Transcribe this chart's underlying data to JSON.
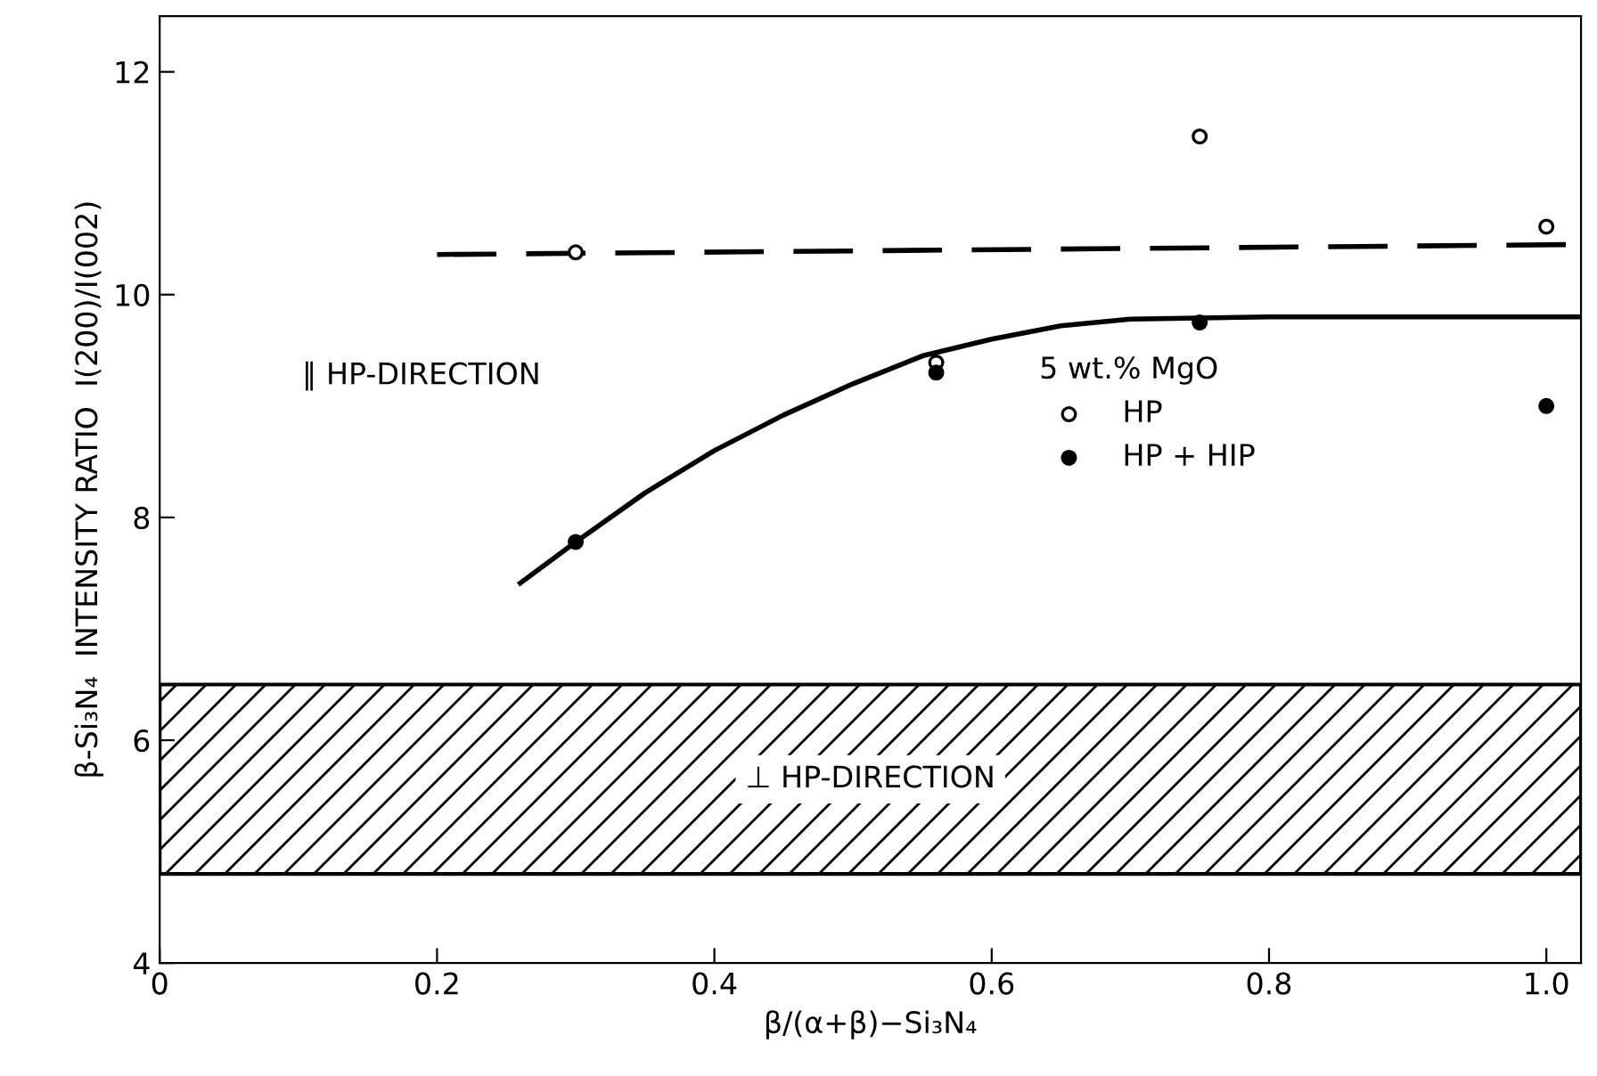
{
  "chart_data": {
    "type": "scatter",
    "xlabel": "β/(α+β)−Si₃N₄",
    "ylabel": "β-Si₃N₄  INTENSITY RATIO  I(200)/I(002)",
    "legend_title": "5 wt.% MgO",
    "xlim": [
      0,
      1.025
    ],
    "ylim": [
      4,
      12.5
    ],
    "xticks": [
      {
        "value": 0,
        "label": "0"
      },
      {
        "value": 0.2,
        "label": "0.2"
      },
      {
        "value": 0.4,
        "label": "0.4"
      },
      {
        "value": 0.6,
        "label": "0.6"
      },
      {
        "value": 0.8,
        "label": "0.8"
      },
      {
        "value": 1.0,
        "label": "1.0"
      }
    ],
    "yticks": [
      4,
      6,
      8,
      10,
      12
    ],
    "series": [
      {
        "name": "HP",
        "marker": "circle",
        "color": "#ffffff",
        "x": [
          0.3,
          0.56,
          0.75,
          1.0
        ],
        "values": [
          10.38,
          9.39,
          11.42,
          10.61
        ]
      },
      {
        "name": "HP + HIP",
        "marker": "circle",
        "color": "#000000",
        "x": [
          0.3,
          0.56,
          0.75,
          1.0
        ],
        "values": [
          7.78,
          9.3,
          9.75,
          9.0
        ]
      },
      {
        "type": "line",
        "line_style": "dashed",
        "color": "#000000",
        "x": [
          0.2,
          1.025
        ],
        "values": [
          10.36,
          10.45
        ]
      },
      {
        "type": "line",
        "line_style": "solid",
        "color": "#000000",
        "x": [
          0.26,
          0.3,
          0.35,
          0.4,
          0.45,
          0.5,
          0.55,
          0.6,
          0.65,
          0.7,
          0.8,
          0.9,
          1.025
        ],
        "values": [
          7.41,
          7.78,
          8.22,
          8.6,
          8.92,
          9.2,
          9.45,
          9.6,
          9.72,
          9.78,
          9.8,
          9.8,
          9.8
        ]
      }
    ],
    "bands": [
      {
        "axis": "y",
        "from": 4.8,
        "to": 6.5,
        "label": "⊥ HP-DIRECTION",
        "color": "#000000"
      }
    ],
    "annotations": [
      "∥ HP-DIRECTION"
    ],
    "legend": "right",
    "grid": false
  }
}
